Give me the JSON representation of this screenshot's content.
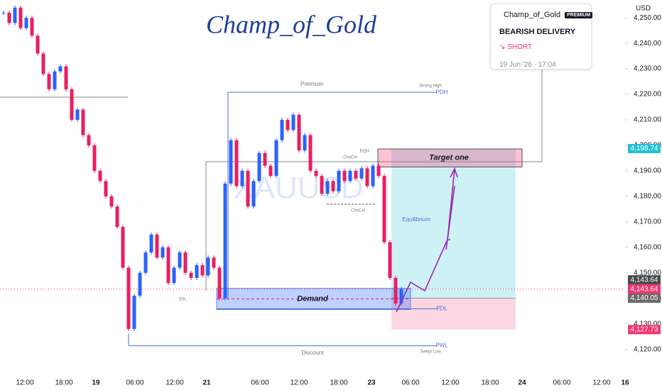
{
  "chart_data": {
    "type": "candlestick",
    "title": "Champ_of_Gold",
    "symbol": "XAUUSD",
    "currency": "USD",
    "up_color": "#2962ff",
    "down_color": "#e91e63",
    "values": [
      4252,
      4248,
      4254,
      4246,
      4250,
      4243,
      4236,
      4228,
      4222,
      4229,
      4231,
      4222,
      4210,
      4214,
      4204,
      4200,
      4190,
      4186,
      4180,
      4176,
      4168,
      4152,
      4128,
      4141,
      4150,
      4158,
      4165,
      4156,
      4160,
      4146,
      4152,
      4158,
      4150,
      4148,
      4153,
      4149,
      4156,
      4152,
      4140,
      4185,
      4202,
      4184,
      4190,
      4176,
      4186,
      4197,
      4192,
      4188,
      4202,
      4210,
      4206,
      4212,
      4198,
      4204,
      4190,
      4188,
      4181,
      4186,
      4182,
      4190,
      4186,
      4190,
      4187,
      4191,
      4184,
      4192,
      4188,
      4162,
      4148,
      4138,
      4143.64
    ],
    "ylim": [
      4111,
      4257
    ],
    "yticks": [
      {
        "value": 4120,
        "label": "4,120.00"
      },
      {
        "value": 4130,
        "label": "4,130.00"
      },
      {
        "value": 4140,
        "label": "4,140.00"
      },
      {
        "value": 4150,
        "label": "4,150.00"
      },
      {
        "value": 4160,
        "label": "4,160.00"
      },
      {
        "value": 4170,
        "label": "4,170.00"
      },
      {
        "value": 4180,
        "label": "4,180.00"
      },
      {
        "value": 4190,
        "label": "4,190.00"
      },
      {
        "value": 4200,
        "label": "4,200.00"
      },
      {
        "value": 4210,
        "label": "4,210.00"
      },
      {
        "value": 4220,
        "label": "4,220.00"
      },
      {
        "value": 4230,
        "label": "4,230.00"
      },
      {
        "value": 4240,
        "label": "4,240.00"
      },
      {
        "value": 4250,
        "label": "4,250.00"
      }
    ],
    "x_labels": [
      "12:00",
      "18:00",
      "19",
      "06:00",
      "12:00",
      "21",
      "06:00",
      "12:00",
      "18:00",
      "23",
      "06:00",
      "12:00",
      "18:00",
      "24",
      "06:00",
      "12:00",
      "16"
    ],
    "price_labels": [
      {
        "value": 4198.74,
        "label": "4,198.74",
        "color": "#22c1d6"
      },
      {
        "value": 4143.64,
        "label": "4,143.64",
        "color": "#4a4a4a"
      },
      {
        "value": 4143.64,
        "label": "4,143.64",
        "color": "#f23670"
      },
      {
        "value": 4140.05,
        "label": "4,140.05",
        "color": "#6b6b6b"
      },
      {
        "value": 4127.73,
        "label": "4,127.73",
        "color": "#f23670"
      }
    ],
    "countdown": "03:40",
    "levels": [
      {
        "name": "PDH",
        "value": 4220.8
      },
      {
        "name": "PDL",
        "value": 4135.9
      },
      {
        "name": "PWL",
        "value": 4121.4
      }
    ],
    "zones": [
      {
        "name": "Demand",
        "top": 4143.9,
        "bottom": 4135.6
      },
      {
        "name": "Target one",
        "top": 4198.6,
        "bottom": 4191.5
      }
    ],
    "annotations": [
      "Premium",
      "Strong High",
      "EQH",
      "ChoCH",
      "ChoCH",
      "Equilibrium",
      "SSL",
      "Swept Low",
      "Discount"
    ]
  },
  "card": {
    "author": "Champ_of_Gold",
    "badge": "PREMIUM",
    "title": "BEARISH DELIVERY",
    "direction": "SHORT",
    "date": "19 Jun '26 · 17:04"
  }
}
